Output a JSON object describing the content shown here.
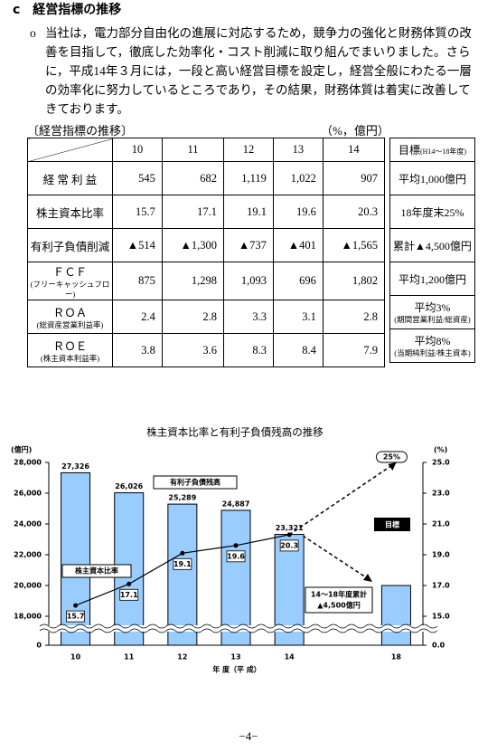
{
  "heading": "c　経営指標の推移",
  "paragraph": {
    "bullet": "o",
    "text": "当社は，電力部分自由化の進展に対応するため，競争力の強化と財務体質の改善を目指して，徹底した効率化・コスト削減に取り組んでまいりました。さらに，平成14年３月には，一段と高い経営目標を設定し，経営全般にわたる一層の効率化に努力しているところであり，その結果，財務体質は着実に改善してきております。"
  },
  "table": {
    "caption": "〔経営指標の推移〕",
    "unit": "（%，億円）",
    "years": [
      "10",
      "11",
      "12",
      "13",
      "14"
    ],
    "target_header": "目標",
    "target_header_note": "(H14～18年度)",
    "rows": [
      {
        "label": "経 常 利 益",
        "values": [
          "545",
          "682",
          "1,119",
          "1,022",
          "907"
        ],
        "target": "平均1,000億円"
      },
      {
        "label": "株主資本比率",
        "values": [
          "15.7",
          "17.1",
          "19.1",
          "19.6",
          "20.3"
        ],
        "target": "18年度末25%"
      },
      {
        "label": "有利子負債削減",
        "values": [
          "▲514",
          "▲1,300",
          "▲737",
          "▲401",
          "▲1,565"
        ],
        "target": "累計▲4,500億円"
      },
      {
        "label": "ＦＣＦ",
        "note": "(フリーキャッシュフロー)",
        "values": [
          "875",
          "1,298",
          "1,093",
          "696",
          "1,802"
        ],
        "target": "平均1,200億円"
      },
      {
        "label": "ＲＯＡ",
        "note": "(総資産営業利益率)",
        "values": [
          "2.4",
          "2.8",
          "3.3",
          "3.1",
          "2.8"
        ],
        "target": "平均3%",
        "target_note": "(期間営業利益/総資産)"
      },
      {
        "label": "ＲＯＥ",
        "note": "(株主資本利益率)",
        "values": [
          "3.8",
          "3.6",
          "8.3",
          "8.4",
          "7.9"
        ],
        "target": "平均8%",
        "target_note": "(当期純利益/株主資本)"
      }
    ]
  },
  "chart_data": {
    "type": "bar_line",
    "title": "株主資本比率と有利子負債残高の推移",
    "categories": [
      "10",
      "11",
      "12",
      "13",
      "14",
      null,
      "18"
    ],
    "series": [
      {
        "name": "有利子負債残高",
        "color": "#99ccff",
        "values": [
          27326,
          26026,
          25289,
          24887,
          23321,
          null,
          20000
        ],
        "value_labels": [
          "27,326",
          "26,026",
          "25,289",
          "24,887",
          "23,321",
          null,
          null
        ]
      },
      {
        "name": "株主資本比率",
        "color": "#000000",
        "axis": "y2",
        "values": [
          15.7,
          17.1,
          19.1,
          19.6,
          20.3,
          null,
          25
        ],
        "value_labels": [
          "15.7",
          "17.1",
          "19.1",
          "19.6",
          "20.3",
          null,
          "25%"
        ]
      }
    ],
    "ylabel": "(億円)",
    "y2label": "(%)",
    "xlabel": "年 度（平 成）",
    "ylim": [
      0,
      28000
    ],
    "ybreak": [
      0,
      17000
    ],
    "yticks": [
      0,
      {
        "value": 18000,
        "label": "18,000"
      },
      {
        "value": 20000,
        "label": "20,000"
      },
      {
        "value": 22000,
        "label": "22,000"
      },
      {
        "value": 24000,
        "label": "24,000"
      },
      {
        "value": 26000,
        "label": "26,000"
      },
      {
        "value": 28000,
        "label": "28,000"
      }
    ],
    "y2lim": [
      0,
      25
    ],
    "y2break": [
      0,
      14
    ],
    "y2ticks": [
      {
        "value": 0,
        "label": "0.0"
      },
      {
        "value": 15,
        "label": "15.0"
      },
      {
        "value": 17,
        "label": "17.0"
      },
      {
        "value": 19,
        "label": "19.0"
      },
      {
        "value": 21,
        "label": "21.0"
      },
      {
        "value": 23,
        "label": "23.0"
      },
      {
        "value": 25,
        "label": "25.0"
      }
    ],
    "annotations": {
      "target": "目標",
      "cumulative": [
        "14～18年度累計",
        "▲4,500億円"
      ]
    }
  },
  "page_number": "−4−"
}
